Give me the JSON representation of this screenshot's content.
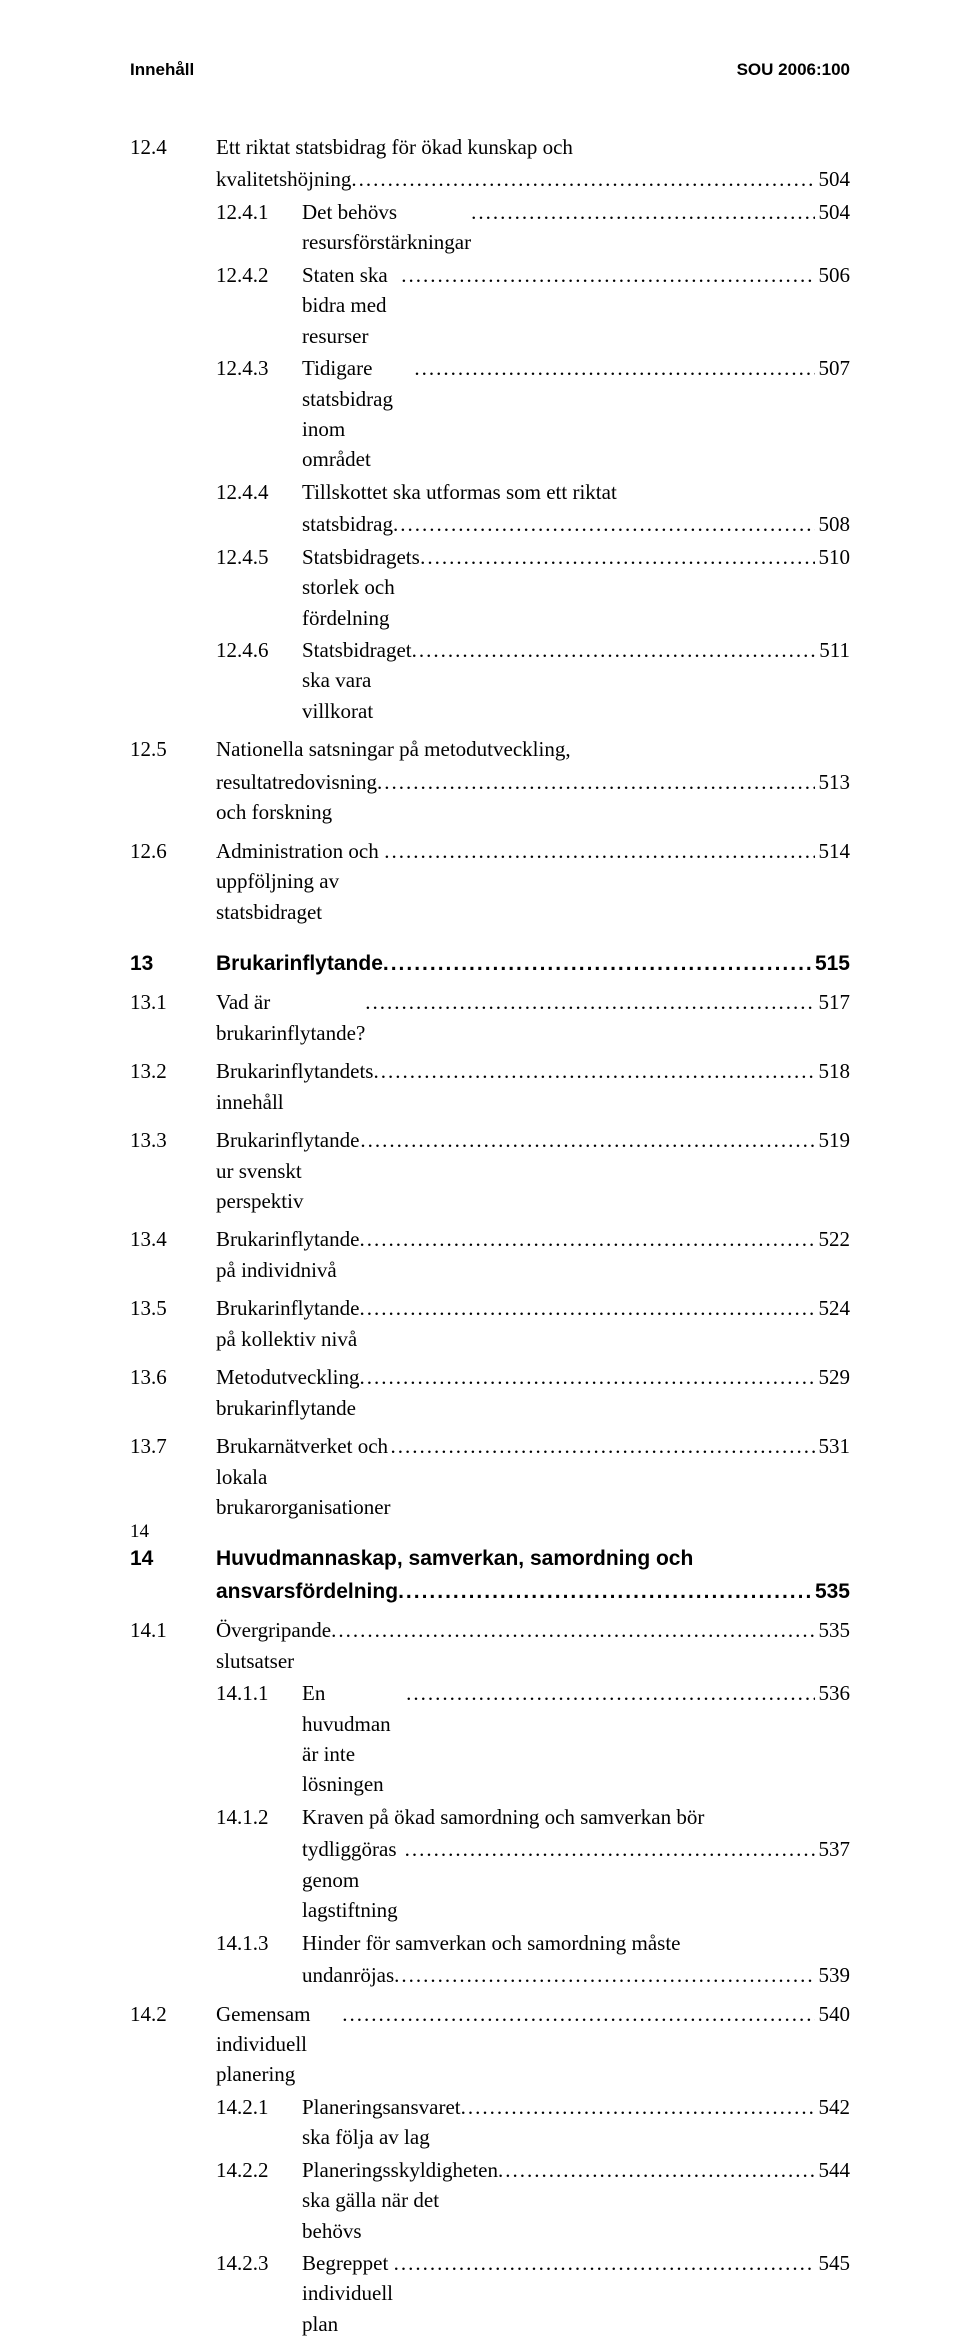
{
  "header": {
    "left": "Innehåll",
    "right": "SOU 2006:100"
  },
  "entries": [
    {
      "num": "12.4",
      "label": "Ett riktat statsbidrag för ökad kunskap och",
      "page": "",
      "level": 1,
      "continued": true,
      "gapBefore": ""
    },
    {
      "num": "",
      "label": "kvalitetshöjning",
      "page": "504",
      "level": 1,
      "continuationOf": true
    },
    {
      "num": "12.4.1",
      "label": "Det behövs resursförstärkningar",
      "page": "504",
      "level": 2
    },
    {
      "num": "12.4.2",
      "label": "Staten ska bidra med resurser",
      "page": "506",
      "level": 2
    },
    {
      "num": "12.4.3",
      "label": "Tidigare statsbidrag inom området",
      "page": "507",
      "level": 2
    },
    {
      "num": "12.4.4",
      "label": "Tillskottet ska utformas som ett riktat",
      "page": "",
      "level": 2,
      "continued": true
    },
    {
      "num": "",
      "label": "statsbidrag",
      "page": "508",
      "level": 2,
      "continuationOf": true
    },
    {
      "num": "12.4.5",
      "label": "Statsbidragets storlek och fördelning",
      "page": "510",
      "level": 2
    },
    {
      "num": "12.4.6",
      "label": "Statsbidraget ska vara villkorat",
      "page": "511",
      "level": 2
    },
    {
      "num": "12.5",
      "label": "Nationella satsningar på metodutveckling,",
      "page": "",
      "level": 1,
      "continued": true,
      "gapBefore": "s"
    },
    {
      "num": "",
      "label": "resultatredovisning och forskning",
      "page": "513",
      "level": 1,
      "continuationOf": true
    },
    {
      "num": "12.6",
      "label": "Administration och uppföljning av statsbidraget",
      "page": "514",
      "level": 1,
      "gapBefore": "s"
    },
    {
      "num": "13",
      "label": "Brukarinflytande",
      "page": "515",
      "level": 0,
      "bold": true,
      "gapBefore": "m"
    },
    {
      "num": "13.1",
      "label": "Vad är brukarinflytande?",
      "page": "517",
      "level": 1,
      "gapBefore": "s"
    },
    {
      "num": "13.2",
      "label": "Brukarinflytandets innehåll",
      "page": "518",
      "level": 1,
      "gapBefore": "s"
    },
    {
      "num": "13.3",
      "label": "Brukarinflytande ur svenskt perspektiv",
      "page": "519",
      "level": 1,
      "gapBefore": "s"
    },
    {
      "num": "13.4",
      "label": "Brukarinflytande på individnivå",
      "page": "522",
      "level": 1,
      "gapBefore": "s"
    },
    {
      "num": "13.5",
      "label": "Brukarinflytande på kollektiv nivå",
      "page": "524",
      "level": 1,
      "gapBefore": "s"
    },
    {
      "num": "13.6",
      "label": "Metodutveckling brukarinflytande",
      "page": "529",
      "level": 1,
      "gapBefore": "s"
    },
    {
      "num": "13.7",
      "label": "Brukarnätverket och lokala brukarorganisationer",
      "page": "531",
      "level": 1,
      "gapBefore": "s"
    },
    {
      "num": "14",
      "label": "Huvudmannaskap, samverkan, samordning och",
      "page": "",
      "level": 0,
      "bold": true,
      "continued": true,
      "gapBefore": "m"
    },
    {
      "num": "",
      "label": "ansvarsfördelning",
      "page": "535",
      "level": 0,
      "bold": true,
      "continuationOf": true
    },
    {
      "num": "14.1",
      "label": "Övergripande slutsatser",
      "page": "535",
      "level": 1,
      "gapBefore": "s"
    },
    {
      "num": "14.1.1",
      "label": "En huvudman är inte lösningen",
      "page": "536",
      "level": 2
    },
    {
      "num": "14.1.2",
      "label": "Kraven på ökad samordning och samverkan bör",
      "page": "",
      "level": 2,
      "continued": true
    },
    {
      "num": "",
      "label": "tydliggöras genom lagstiftning",
      "page": "537",
      "level": 2,
      "continuationOf": true
    },
    {
      "num": "14.1.3",
      "label": "Hinder för samverkan och samordning måste",
      "page": "",
      "level": 2,
      "continued": true
    },
    {
      "num": "",
      "label": "undanröjas",
      "page": "539",
      "level": 2,
      "continuationOf": true
    },
    {
      "num": "14.2",
      "label": "Gemensam individuell planering",
      "page": "540",
      "level": 1,
      "gapBefore": "s"
    },
    {
      "num": "14.2.1",
      "label": "Planeringsansvaret ska följa av lag",
      "page": "542",
      "level": 2
    },
    {
      "num": "14.2.2",
      "label": "Planeringsskyldigheten ska gälla när det behövs",
      "page": "544",
      "level": 2
    },
    {
      "num": "14.2.3",
      "label": "Begreppet individuell plan",
      "page": "545",
      "level": 2
    }
  ],
  "pageNumber": "14"
}
